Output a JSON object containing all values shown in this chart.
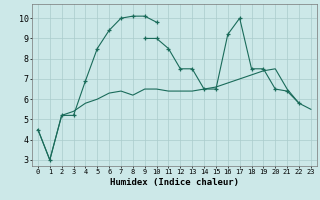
{
  "xlabel": "Humidex (Indice chaleur)",
  "background_color": "#cce8e8",
  "grid_color": "#aacccc",
  "line_color": "#1a6b5a",
  "xticks": [
    0,
    1,
    2,
    3,
    4,
    5,
    6,
    7,
    8,
    9,
    10,
    11,
    12,
    13,
    14,
    15,
    16,
    17,
    18,
    19,
    20,
    21,
    22,
    23
  ],
  "yticks": [
    3,
    4,
    5,
    6,
    7,
    8,
    9,
    10
  ],
  "line1_x": [
    0,
    1,
    2,
    3,
    4,
    5,
    6,
    7,
    8,
    9,
    10
  ],
  "line1_y": [
    4.5,
    3.0,
    5.2,
    5.2,
    6.9,
    8.5,
    9.4,
    10.0,
    10.1,
    10.1,
    9.8
  ],
  "line2_x": [
    9,
    10,
    11,
    12,
    13,
    14,
    15,
    16,
    17,
    18,
    19,
    20,
    21,
    22
  ],
  "line2_y": [
    9.0,
    9.0,
    8.5,
    7.5,
    7.5,
    6.5,
    6.5,
    9.2,
    10.0,
    7.5,
    7.5,
    6.5,
    6.4,
    5.8
  ],
  "line3_x": [
    0,
    1,
    2,
    3,
    4,
    5,
    6,
    7,
    8,
    9,
    10,
    11,
    12,
    13,
    14,
    15,
    16,
    17,
    18,
    19,
    20,
    21,
    22,
    23
  ],
  "line3_y": [
    4.5,
    3.0,
    5.2,
    5.4,
    5.8,
    6.0,
    6.3,
    6.4,
    6.2,
    6.5,
    6.5,
    6.4,
    6.4,
    6.4,
    6.5,
    6.6,
    6.8,
    7.0,
    7.2,
    7.4,
    7.5,
    6.5,
    5.8,
    5.5
  ]
}
